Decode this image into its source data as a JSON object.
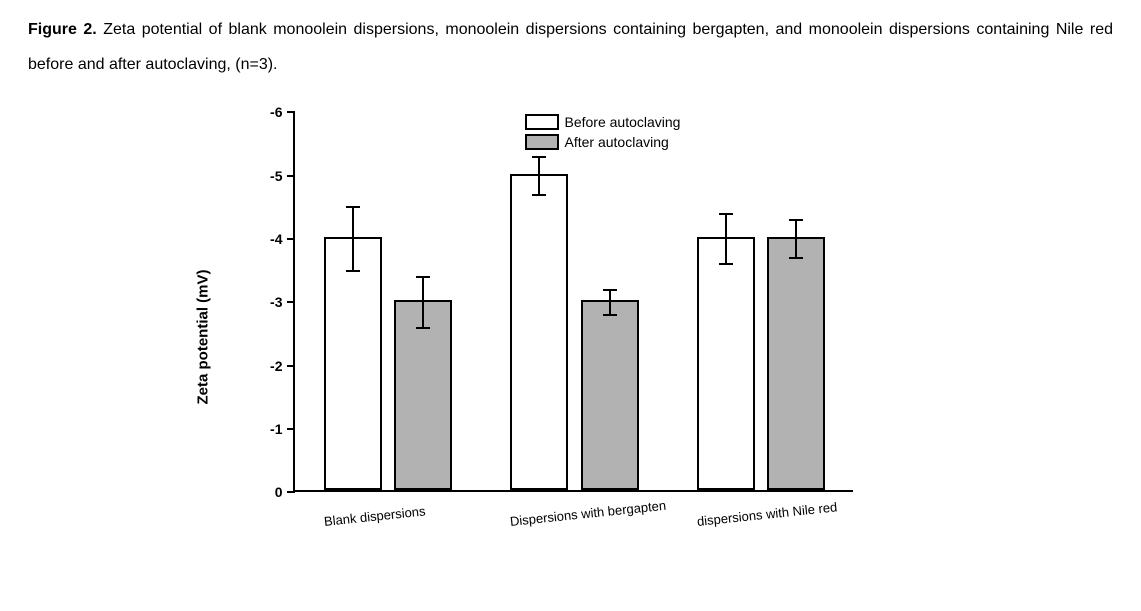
{
  "caption": {
    "figure_label": "Figure 2.",
    "text": " Zeta potential of blank monoolein dispersions, monoolein dispersions containing bergapten, and monoolein dispersions containing Nile red before and after autoclaving, (n=3)."
  },
  "chart": {
    "type": "bar",
    "y_axis": {
      "label": "Zeta potential (mV)",
      "min": 0,
      "max": -6,
      "ticks": [
        0,
        -1,
        -2,
        -3,
        -4,
        -5,
        -6
      ],
      "tick_labels": [
        "0",
        "-1",
        "-2",
        "-3",
        "-4",
        "-5",
        "-6"
      ],
      "label_fontsize": 15,
      "tick_fontsize": 14
    },
    "categories": [
      "Blank dispersions",
      "Dispersions with bergapten",
      "dispersions with Nile red"
    ],
    "series": [
      {
        "name": "Before autoclaving",
        "color": "#ffffff",
        "values": [
          -4.0,
          -5.0,
          -4.0
        ],
        "errors": [
          0.5,
          0.3,
          0.4
        ]
      },
      {
        "name": "After autoclaving",
        "color": "#b2b2b2",
        "values": [
          -3.0,
          -3.0,
          -4.0
        ],
        "errors": [
          0.4,
          0.2,
          0.3
        ]
      }
    ],
    "bar_border_color": "#000000",
    "bar_border_width": 2,
    "bar_width_ratio": 0.38,
    "group_gap_ratio": 0.18,
    "error_cap_width": 14,
    "background_color": "#ffffff",
    "axis_color": "#000000",
    "x_label_fontsize": 13,
    "x_label_rotation_deg": -6,
    "legend": {
      "position": "top-center",
      "fontsize": 14
    }
  }
}
